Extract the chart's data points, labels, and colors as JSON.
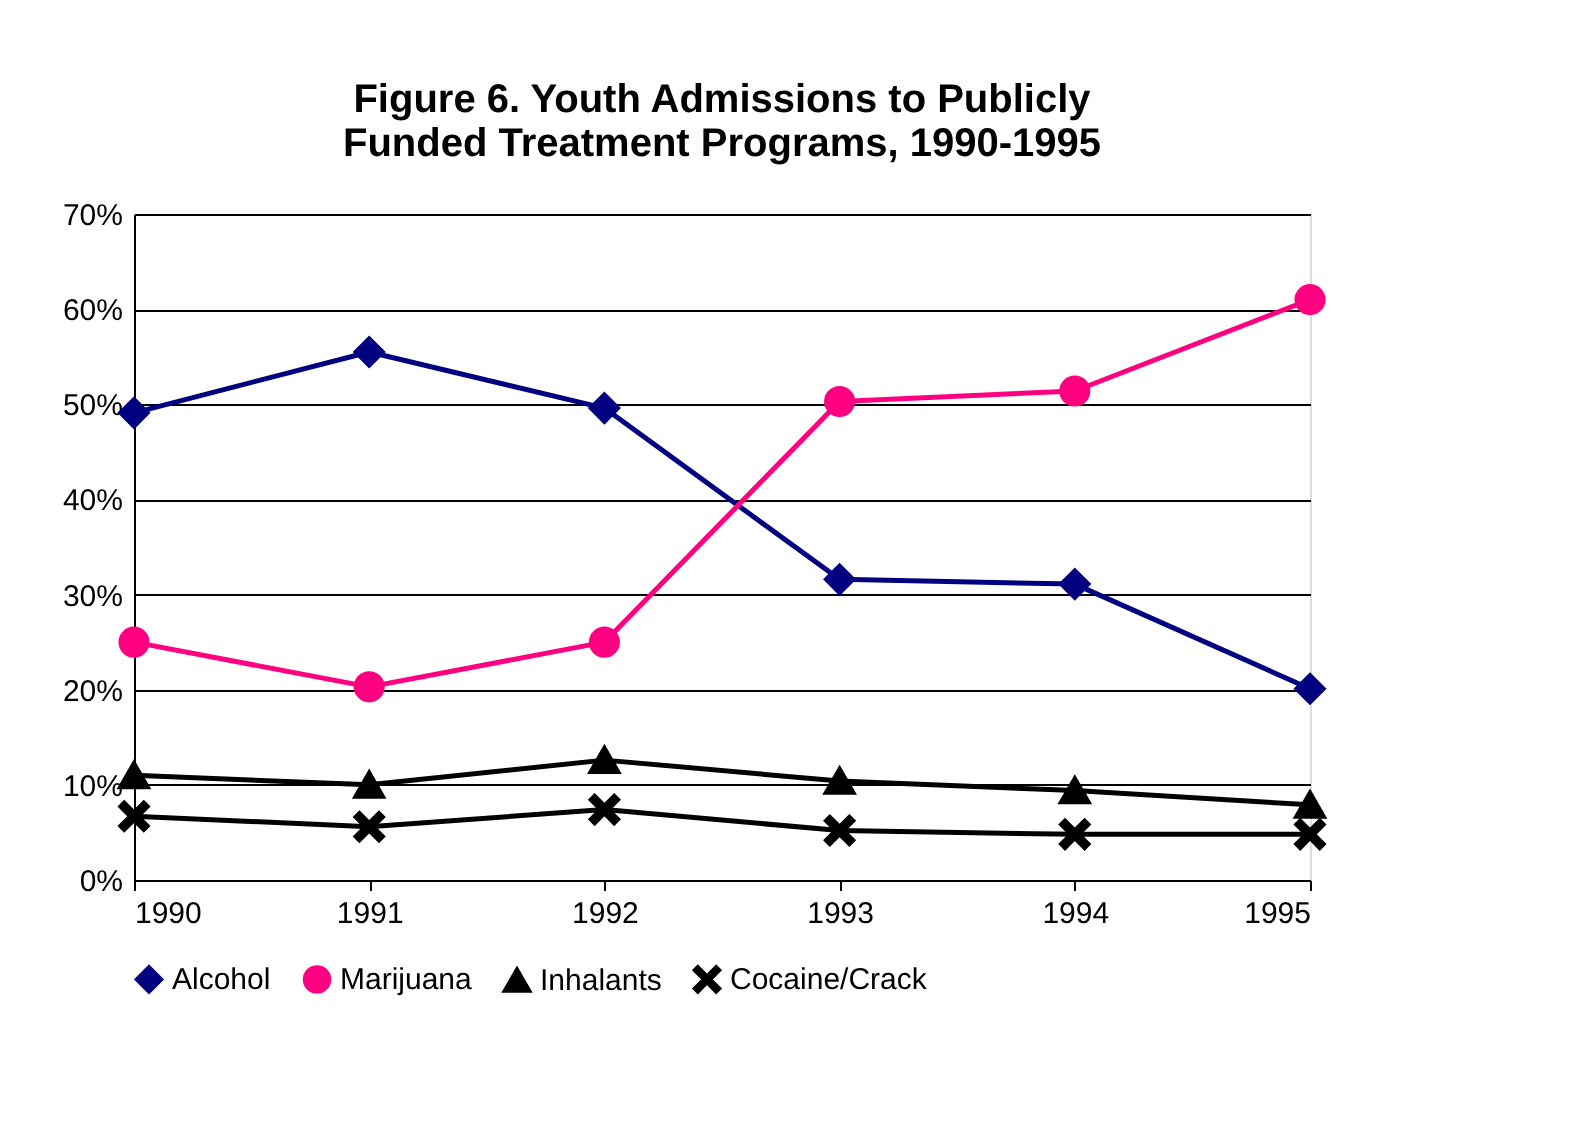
{
  "chart_data": {
    "type": "line",
    "title": [
      "Figure 6. Youth Admissions to Publicly",
      "Funded Treatment Programs, 1990-1995"
    ],
    "categories": [
      "1990",
      "1991",
      "1992",
      "1993",
      "1994",
      "1995"
    ],
    "series": [
      {
        "name": "Alcohol",
        "color": "#000080",
        "marker": "diamond",
        "values": [
          49.1,
          55.5,
          49.6,
          31.6,
          31.1,
          20.1
        ]
      },
      {
        "name": "Marijuana",
        "color": "#ff0080",
        "marker": "circle",
        "values": [
          25,
          20.3,
          25,
          50.3,
          51.4,
          61
        ]
      },
      {
        "name": "Inhalants",
        "color": "#000000",
        "marker": "triangle",
        "values": [
          11,
          10,
          12.6,
          10.4,
          9.4,
          7.9
        ]
      },
      {
        "name": "Cocaine/Crack",
        "color": "#000000",
        "marker": "cross",
        "values": [
          6.7,
          5.6,
          7.4,
          5.2,
          4.8,
          4.8
        ]
      }
    ],
    "ylim": [
      0,
      70
    ],
    "yticks": [
      {
        "value": 0,
        "label": "0%"
      },
      {
        "value": 10,
        "label": "10%"
      },
      {
        "value": 20,
        "label": "20%"
      },
      {
        "value": 30,
        "label": "30%"
      },
      {
        "value": 40,
        "label": "40%"
      },
      {
        "value": 50,
        "label": "50%"
      },
      {
        "value": 60,
        "label": "60%"
      },
      {
        "value": 70,
        "label": "70%"
      }
    ],
    "grid": "y",
    "legend": "bottom",
    "line_style": "solid"
  }
}
